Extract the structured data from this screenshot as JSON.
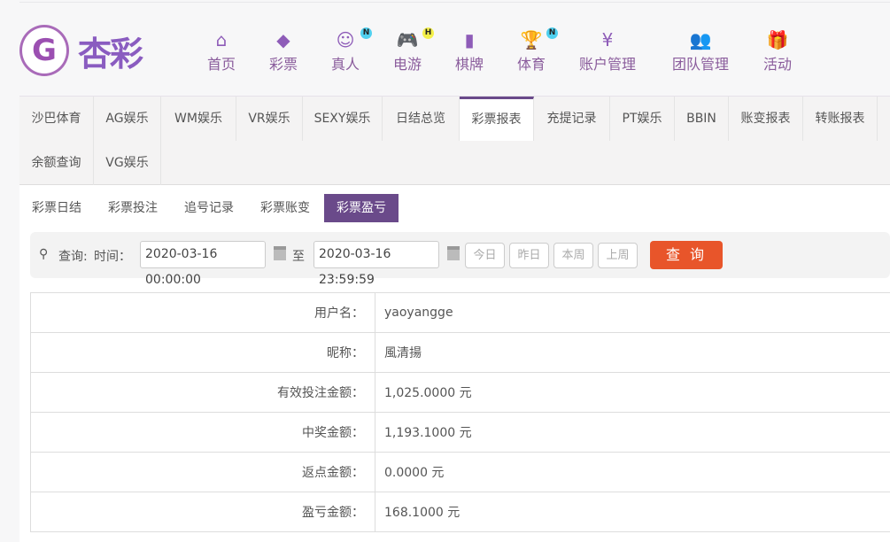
{
  "logo": {
    "mark": "G",
    "text": "杏彩"
  },
  "nav": [
    {
      "label": "首页",
      "icon": "home-icon",
      "glyph": "⌂"
    },
    {
      "label": "彩票",
      "icon": "ticket-icon",
      "glyph": "◆"
    },
    {
      "label": "真人",
      "icon": "dealer-icon",
      "glyph": "☺",
      "badge": "N"
    },
    {
      "label": "电游",
      "icon": "gamepad-icon",
      "glyph": "🎮",
      "badge": "H"
    },
    {
      "label": "棋牌",
      "icon": "cards-icon",
      "glyph": "▮"
    },
    {
      "label": "体育",
      "icon": "trophy-icon",
      "glyph": "🏆",
      "badge": "N"
    },
    {
      "label": "账户管理",
      "icon": "yen-coin-icon",
      "glyph": "¥"
    },
    {
      "label": "团队管理",
      "icon": "team-icon",
      "glyph": "👥"
    },
    {
      "label": "活动",
      "icon": "gift-icon",
      "glyph": "🎁"
    }
  ],
  "tabs": [
    "沙巴体育",
    "AG娱乐",
    "WM娱乐",
    "VR娱乐",
    "SEXY娱乐",
    "日结总览",
    "彩票报表",
    "充提记录",
    "PT娱乐",
    "BBIN",
    "账变报表",
    "转账报表",
    "余额查询",
    "VG娱乐"
  ],
  "active_tab": "彩票报表",
  "subtabs": [
    "彩票日结",
    "彩票投注",
    "追号记录",
    "彩票账变",
    "彩票盈亏"
  ],
  "active_subtab": "彩票盈亏",
  "search": {
    "query_label": "查询:",
    "time_label": "时间：",
    "start": "2020-03-16 00:00:00",
    "to": "至",
    "end": "2020-03-16 23:59:59",
    "quick": [
      "今日",
      "昨日",
      "本周",
      "上周"
    ],
    "submit": "查 询"
  },
  "rows": [
    {
      "label": "用户名：",
      "value": "yaoyangge"
    },
    {
      "label": "昵称：",
      "value": "風清揚"
    },
    {
      "label": "有效投注金额：",
      "value": "1,025.0000 元"
    },
    {
      "label": "中奖金额：",
      "value": "1,193.1000 元"
    },
    {
      "label": "返点金额：",
      "value": "0.0000 元"
    },
    {
      "label": "盈亏金额：",
      "value": "168.1000 元"
    }
  ],
  "colors": {
    "accent": "#6a4a8a",
    "button": "#e8552a",
    "nav": "#8e5cb8"
  }
}
